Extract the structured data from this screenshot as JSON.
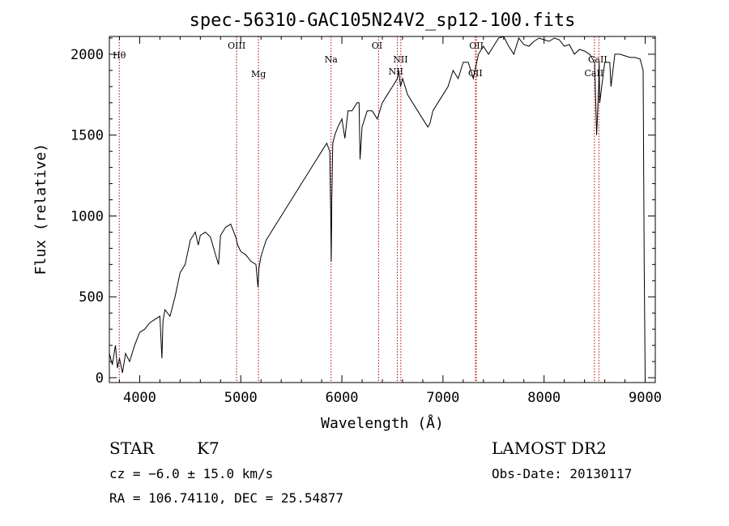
{
  "chart_data": {
    "type": "line",
    "title": "spec-56310-GAC105N24V2_sp12-100.fits",
    "xlabel": "Wavelength (Å)",
    "ylabel": "Flux (relative)",
    "xlim": [
      3700,
      9100
    ],
    "ylim": [
      -30,
      2110
    ],
    "x_ticks": [
      4000,
      5000,
      6000,
      7000,
      8000,
      9000
    ],
    "y_ticks": [
      0,
      500,
      1000,
      1500,
      2000
    ],
    "grid": false,
    "series": [
      {
        "color": "#000000",
        "x": [
          3700,
          3730,
          3760,
          3780,
          3800,
          3830,
          3860,
          3900,
          3950,
          4000,
          4050,
          4100,
          4150,
          4200,
          4220,
          4230,
          4250,
          4300,
          4350,
          4400,
          4450,
          4500,
          4550,
          4580,
          4600,
          4650,
          4700,
          4750,
          4780,
          4800,
          4850,
          4900,
          4950,
          4970,
          5000,
          5050,
          5100,
          5150,
          5170,
          5180,
          5200,
          5250,
          5300,
          5350,
          5400,
          5450,
          5500,
          5550,
          5600,
          5650,
          5700,
          5750,
          5800,
          5850,
          5880,
          5890,
          5895,
          5900,
          5910,
          5930,
          5960,
          6000,
          6030,
          6060,
          6100,
          6150,
          6170,
          6180,
          6200,
          6250,
          6300,
          6350,
          6400,
          6450,
          6500,
          6550,
          6563,
          6580,
          6600,
          6650,
          6700,
          6750,
          6800,
          6850,
          6870,
          6900,
          6950,
          7000,
          7050,
          7100,
          7150,
          7200,
          7250,
          7300,
          7350,
          7400,
          7450,
          7500,
          7550,
          7600,
          7650,
          7700,
          7750,
          7800,
          7850,
          7900,
          7950,
          8000,
          8050,
          8100,
          8150,
          8200,
          8250,
          8300,
          8350,
          8400,
          8450,
          8500,
          8520,
          8540,
          8545,
          8550,
          8600,
          8650,
          8662,
          8700,
          8750,
          8800,
          8850,
          8900,
          8950,
          8980,
          8990,
          9000
        ],
        "y": [
          150,
          80,
          200,
          60,
          120,
          30,
          150,
          100,
          200,
          280,
          300,
          340,
          360,
          380,
          120,
          350,
          420,
          380,
          500,
          650,
          700,
          850,
          900,
          820,
          880,
          900,
          870,
          760,
          700,
          880,
          930,
          950,
          870,
          820,
          780,
          760,
          720,
          700,
          560,
          680,
          750,
          850,
          900,
          950,
          1000,
          1050,
          1100,
          1150,
          1200,
          1250,
          1300,
          1350,
          1400,
          1450,
          1400,
          1000,
          720,
          1100,
          1450,
          1500,
          1550,
          1600,
          1480,
          1650,
          1650,
          1700,
          1700,
          1350,
          1550,
          1650,
          1650,
          1600,
          1700,
          1750,
          1800,
          1850,
          1900,
          1800,
          1850,
          1750,
          1700,
          1650,
          1600,
          1550,
          1570,
          1650,
          1700,
          1750,
          1800,
          1900,
          1850,
          1950,
          1950,
          1850,
          2000,
          2050,
          2000,
          2050,
          2100,
          2110,
          2050,
          2000,
          2100,
          2060,
          2050,
          2080,
          2100,
          2090,
          2080,
          2100,
          2090,
          2050,
          2060,
          2000,
          2030,
          2020,
          2000,
          1950,
          1500,
          1800,
          1950,
          1700,
          1950,
          1950,
          1800,
          2000,
          2000,
          1990,
          1980,
          1980,
          1970,
          1900,
          700,
          0
        ]
      }
    ],
    "line_markers": [
      {
        "label": "Hθ",
        "x": 3798
      },
      {
        "label": "OIII",
        "x": 4959
      },
      {
        "label": "Mg",
        "x": 5175
      },
      {
        "label": "Na",
        "x": 5893
      },
      {
        "label": "OI",
        "x": 6363
      },
      {
        "label": "NII",
        "x": 6548
      },
      {
        "label": "NII",
        "x": 6583
      },
      {
        "label": "OII",
        "x": 7320
      },
      {
        "label": "OII",
        "x": 7330
      },
      {
        "label": "CaII",
        "x": 8498
      },
      {
        "label": "CaII",
        "x": 8542
      }
    ]
  },
  "info": {
    "class": "STAR",
    "subclass": "K7",
    "cz": "cz = −6.0 ± 15.0 km/s",
    "radec": "RA = 106.74110, DEC =  25.54877",
    "survey": "LAMOST DR2",
    "obsdate": "Obs-Date: 20130117"
  }
}
